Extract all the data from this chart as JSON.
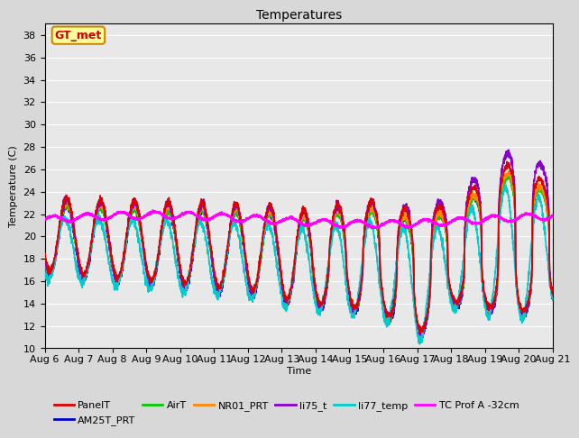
{
  "title": "Temperatures",
  "xlabel": "Time",
  "ylabel": "Temperature (C)",
  "ylim": [
    10,
    39
  ],
  "xlim": [
    0,
    15
  ],
  "yticks": [
    10,
    12,
    14,
    16,
    18,
    20,
    22,
    24,
    26,
    28,
    30,
    32,
    34,
    36,
    38
  ],
  "xtick_labels": [
    "Aug 6",
    "Aug 7",
    "Aug 8",
    "Aug 9",
    "Aug 10",
    "Aug 11",
    "Aug 12",
    "Aug 13",
    "Aug 14",
    "Aug 15",
    "Aug 16",
    "Aug 17",
    "Aug 18",
    "Aug 19",
    "Aug 20",
    "Aug 21"
  ],
  "annotation_text": "GT_met",
  "annotation_color": "#cc0000",
  "annotation_bg": "#ffff99",
  "annotation_border": "#cc8800",
  "series": {
    "PanelT": {
      "color": "#dd0000",
      "lw": 1.2,
      "zorder": 5
    },
    "AM25T_PRT": {
      "color": "#0000cc",
      "lw": 1.2,
      "zorder": 4
    },
    "AirT": {
      "color": "#00cc00",
      "lw": 1.2,
      "zorder": 4
    },
    "NR01_PRT": {
      "color": "#ff8800",
      "lw": 1.2,
      "zorder": 4
    },
    "li75_t": {
      "color": "#8800cc",
      "lw": 1.2,
      "zorder": 4
    },
    "li77_temp": {
      "color": "#00cccc",
      "lw": 1.2,
      "zorder": 4
    },
    "TC Prof A -32cm": {
      "color": "#ff00ff",
      "lw": 1.5,
      "zorder": 6
    }
  },
  "background_color": "#e8e8e8",
  "grid_color": "#ffffff",
  "font_family": "DejaVu Sans",
  "font_size": 8,
  "title_fontsize": 10,
  "figsize": [
    6.4,
    4.8
  ],
  "dpi": 100
}
